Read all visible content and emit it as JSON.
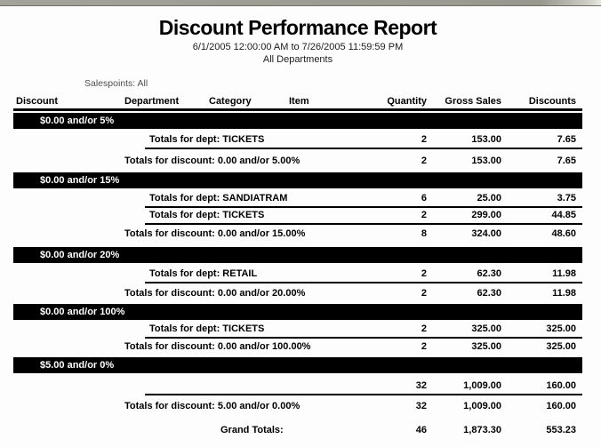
{
  "report": {
    "title": "Discount Performance Report",
    "date_range": "6/1/2005 12:00:00 AM to 7/26/2005 11:59:59 PM",
    "scope": "All Departments",
    "salespoints": "Salespoints: All",
    "columns": [
      "Discount",
      "Department",
      "Category",
      "Item",
      "Quantity",
      "Gross Sales",
      "Discounts"
    ],
    "colors": {
      "group_bar": "#000000",
      "bar_text": "#ffffff",
      "salespoints_text": "#4f4f4f"
    },
    "groups": [
      {
        "discount": "$0.00 and/or 5%",
        "dept_rows": [
          {
            "label": "Totals for dept: TICKETS",
            "quantity": "2",
            "gross_sales": "153.00",
            "discounts": "7.65"
          }
        ],
        "total": {
          "label": "Totals for discount: 0.00 and/or 5.00%",
          "quantity": "2",
          "gross_sales": "153.00",
          "discounts": "7.65"
        }
      },
      {
        "discount": "$0.00 and/or 15%",
        "dept_rows": [
          {
            "label": "Totals for dept: SANDIATRAM",
            "quantity": "6",
            "gross_sales": "25.00",
            "discounts": "3.75"
          },
          {
            "label": "Totals for dept: TICKETS",
            "quantity": "2",
            "gross_sales": "299.00",
            "discounts": "44.85"
          }
        ],
        "total": {
          "label": "Totals for discount: 0.00 and/or 15.00%",
          "quantity": "8",
          "gross_sales": "324.00",
          "discounts": "48.60"
        }
      },
      {
        "discount": "$0.00 and/or 20%",
        "dept_rows": [
          {
            "label": "Totals for dept: RETAIL",
            "quantity": "2",
            "gross_sales": "62.30",
            "discounts": "11.98"
          }
        ],
        "total": {
          "label": "Totals for discount: 0.00 and/or 20.00%",
          "quantity": "2",
          "gross_sales": "62.30",
          "discounts": "11.98"
        }
      },
      {
        "discount": "$0.00 and/or 100%",
        "dept_rows": [
          {
            "label": "Totals for dept: TICKETS",
            "quantity": "2",
            "gross_sales": "325.00",
            "discounts": "325.00"
          }
        ],
        "total": {
          "label": "Totals for discount: 0.00 and/or 100.00%",
          "quantity": "2",
          "gross_sales": "325.00",
          "discounts": "325.00"
        }
      },
      {
        "discount": "$5.00 and/or 0%",
        "dept_rows": [
          {
            "label": "",
            "quantity": "32",
            "gross_sales": "1,009.00",
            "discounts": "160.00"
          }
        ],
        "total": {
          "label": "Totals for discount: 5.00 and/or 0.00%",
          "quantity": "32",
          "gross_sales": "1,009.00",
          "discounts": "160.00"
        }
      }
    ],
    "grand_total": {
      "label": "Grand Totals:",
      "quantity": "46",
      "gross_sales": "1,873.30",
      "discounts": "553.23"
    }
  }
}
